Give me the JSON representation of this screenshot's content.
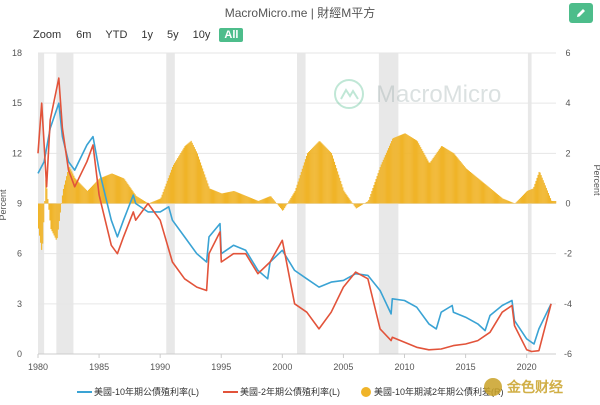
{
  "header": {
    "title": "MacroMicro.me | 財經M平方",
    "edit_icon": "pencil-icon"
  },
  "zoom": {
    "label": "Zoom",
    "buttons": [
      "6m",
      "YTD",
      "1y",
      "5y",
      "10y",
      "All"
    ],
    "active": "All"
  },
  "watermark": "MacroMicro",
  "corner_watermark": "金色财经",
  "colors": {
    "accent": "#4dbd8b",
    "series10y": "#3aa3d4",
    "series2y": "#e2533a",
    "spread": "#f0b429",
    "recession": "#e8e8e8"
  },
  "chart_data": {
    "type": "line",
    "x_ticks": [
      "1980",
      "1985",
      "1990",
      "1995",
      "2000",
      "2005",
      "2010",
      "2015",
      "2020"
    ],
    "y_left": {
      "label": "Percent",
      "ticks": [
        "0",
        "3",
        "6",
        "9",
        "12",
        "15",
        "18"
      ],
      "range": [
        0,
        18
      ]
    },
    "y_right": {
      "label": "Percent",
      "ticks": [
        "-6",
        "-4",
        "-2",
        "0",
        "2",
        "4",
        "6"
      ],
      "range": [
        -6,
        6
      ]
    },
    "recession_shading": [
      [
        1980.0,
        1980.5
      ],
      [
        1981.5,
        1982.9
      ],
      [
        1990.5,
        1991.2
      ],
      [
        2001.2,
        2001.9
      ],
      [
        2007.9,
        2009.5
      ],
      [
        2020.1,
        2020.4
      ]
    ],
    "series": [
      {
        "name": "美國-10年期公債殖利率(L)",
        "type": "line",
        "axis": "left",
        "x": [
          1980,
          1980.5,
          1981,
          1981.7,
          1982,
          1982.5,
          1983,
          1984,
          1984.5,
          1985,
          1986,
          1986.5,
          1987,
          1987.8,
          1988,
          1989,
          1990,
          1990.7,
          1991,
          1992,
          1993,
          1993.8,
          1994,
          1994.9,
          1995,
          1996,
          1997,
          1998,
          1998.8,
          1999,
          2000,
          2001,
          2002,
          2003,
          2004,
          2005,
          2006,
          2007,
          2008,
          2008.9,
          2009,
          2010,
          2011,
          2012,
          2012.6,
          2013,
          2013.9,
          2014,
          2015,
          2016,
          2016.6,
          2017,
          2018,
          2018.8,
          2019,
          2020,
          2020.6,
          2021,
          2022
        ],
        "values": [
          10.8,
          11.5,
          13.5,
          15.0,
          13.0,
          11.5,
          11.0,
          12.5,
          13.0,
          11.0,
          8.0,
          7.0,
          8.0,
          9.5,
          9.0,
          8.5,
          8.5,
          8.8,
          8.0,
          7.0,
          6.0,
          5.5,
          7.0,
          7.8,
          6.0,
          6.5,
          6.2,
          5.0,
          4.5,
          5.5,
          6.2,
          5.0,
          4.5,
          4.0,
          4.3,
          4.4,
          4.8,
          4.7,
          3.8,
          2.4,
          3.3,
          3.2,
          2.8,
          1.8,
          1.5,
          2.5,
          2.9,
          2.5,
          2.2,
          1.8,
          1.4,
          2.3,
          2.9,
          3.2,
          2.0,
          0.9,
          0.6,
          1.5,
          3.0
        ]
      },
      {
        "name": "美國-2年期公債殖利率(L)",
        "type": "line",
        "axis": "left",
        "x": [
          1980,
          1980.3,
          1980.7,
          1981,
          1981.7,
          1982,
          1982.5,
          1983,
          1984,
          1984.5,
          1985,
          1986,
          1986.5,
          1987,
          1987.8,
          1988,
          1989,
          1990,
          1991,
          1992,
          1993,
          1993.8,
          1994,
          1994.9,
          1995,
          1996,
          1997,
          1998,
          1999,
          2000,
          2001,
          2002,
          2003,
          2004,
          2005,
          2006,
          2007,
          2008,
          2008.9,
          2009,
          2010,
          2011,
          2012,
          2013,
          2014,
          2015,
          2016,
          2017,
          2018,
          2018.8,
          2019,
          2020,
          2020.4,
          2021,
          2022
        ],
        "values": [
          12.0,
          15.0,
          10.0,
          14.0,
          16.5,
          13.5,
          11.0,
          10.0,
          11.5,
          12.5,
          9.5,
          6.5,
          6.0,
          7.0,
          8.5,
          8.0,
          9.0,
          8.0,
          5.5,
          4.5,
          4.0,
          3.8,
          6.0,
          7.3,
          5.5,
          6.0,
          6.0,
          4.8,
          5.5,
          6.8,
          3.0,
          2.5,
          1.5,
          2.5,
          4.0,
          4.9,
          4.5,
          1.5,
          0.8,
          1.0,
          0.7,
          0.4,
          0.25,
          0.3,
          0.5,
          0.6,
          0.8,
          1.3,
          2.5,
          2.9,
          1.7,
          0.25,
          0.15,
          0.2,
          3.0
        ]
      },
      {
        "name": "美國-10年期減2年期公債利差(R)",
        "type": "bar",
        "axis": "right",
        "x": [
          1980,
          1980.3,
          1980.6,
          1981,
          1981.5,
          1982,
          1982.5,
          1983,
          1984,
          1985,
          1986,
          1987,
          1988,
          1989,
          1990,
          1991,
          1992,
          1992.5,
          1993,
          1994,
          1995,
          1996,
          1997,
          1998,
          1999,
          2000,
          2001,
          2002,
          2003,
          2004,
          2005,
          2006,
          2007,
          2008,
          2009,
          2010,
          2011,
          2012,
          2013,
          2014,
          2015,
          2016,
          2017,
          2018,
          2019,
          2020,
          2020.5,
          2021,
          2022
        ],
        "values": [
          -1.0,
          -2.0,
          1.0,
          -1.0,
          -1.5,
          0.5,
          1.5,
          1.0,
          0.5,
          1.0,
          1.2,
          1.0,
          0.3,
          0.0,
          0.2,
          1.5,
          2.3,
          2.5,
          2.0,
          0.6,
          0.4,
          0.5,
          0.3,
          0.1,
          0.3,
          -0.3,
          0.5,
          2.0,
          2.5,
          2.0,
          0.5,
          -0.2,
          0.1,
          1.5,
          2.6,
          2.8,
          2.5,
          1.6,
          2.3,
          2.0,
          1.4,
          1.0,
          0.6,
          0.2,
          0.0,
          0.5,
          0.6,
          1.3,
          0.1
        ]
      }
    ]
  }
}
